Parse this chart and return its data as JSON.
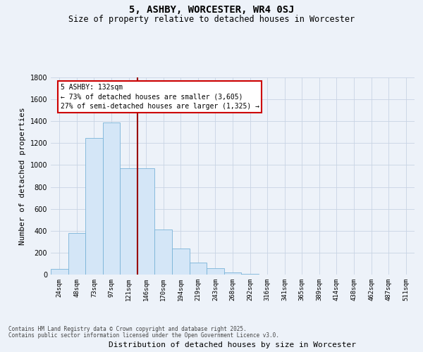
{
  "title1": "5, ASHBY, WORCESTER, WR4 0SJ",
  "title2": "Size of property relative to detached houses in Worcester",
  "xlabel": "Distribution of detached houses by size in Worcester",
  "ylabel": "Number of detached properties",
  "categories": [
    "24sqm",
    "48sqm",
    "73sqm",
    "97sqm",
    "121sqm",
    "146sqm",
    "170sqm",
    "194sqm",
    "219sqm",
    "243sqm",
    "268sqm",
    "292sqm",
    "316sqm",
    "341sqm",
    "365sqm",
    "389sqm",
    "414sqm",
    "438sqm",
    "462sqm",
    "487sqm",
    "511sqm"
  ],
  "values": [
    50,
    380,
    1250,
    1390,
    970,
    970,
    410,
    240,
    110,
    60,
    20,
    5,
    0,
    0,
    0,
    0,
    0,
    0,
    0,
    0,
    0
  ],
  "bar_color": "#d4e6f7",
  "bar_edge_color": "#7ab4d8",
  "vline_x": 4.5,
  "vline_color": "#990000",
  "annotation_text": "5 ASHBY: 132sqm\n← 73% of detached houses are smaller (3,605)\n27% of semi-detached houses are larger (1,325) →",
  "annotation_box_color": "#ffffff",
  "annotation_box_edge": "#cc0000",
  "ylim": [
    0,
    1800
  ],
  "yticks": [
    0,
    200,
    400,
    600,
    800,
    1000,
    1200,
    1400,
    1600,
    1800
  ],
  "grid_color": "#c8d4e4",
  "background_color": "#edf2f9",
  "footer1": "Contains HM Land Registry data © Crown copyright and database right 2025.",
  "footer2": "Contains public sector information licensed under the Open Government Licence v3.0.",
  "title_fontsize": 10,
  "subtitle_fontsize": 8.5,
  "tick_fontsize": 6.5,
  "ylabel_fontsize": 8,
  "xlabel_fontsize": 8,
  "footer_fontsize": 5.5,
  "annot_fontsize": 7
}
